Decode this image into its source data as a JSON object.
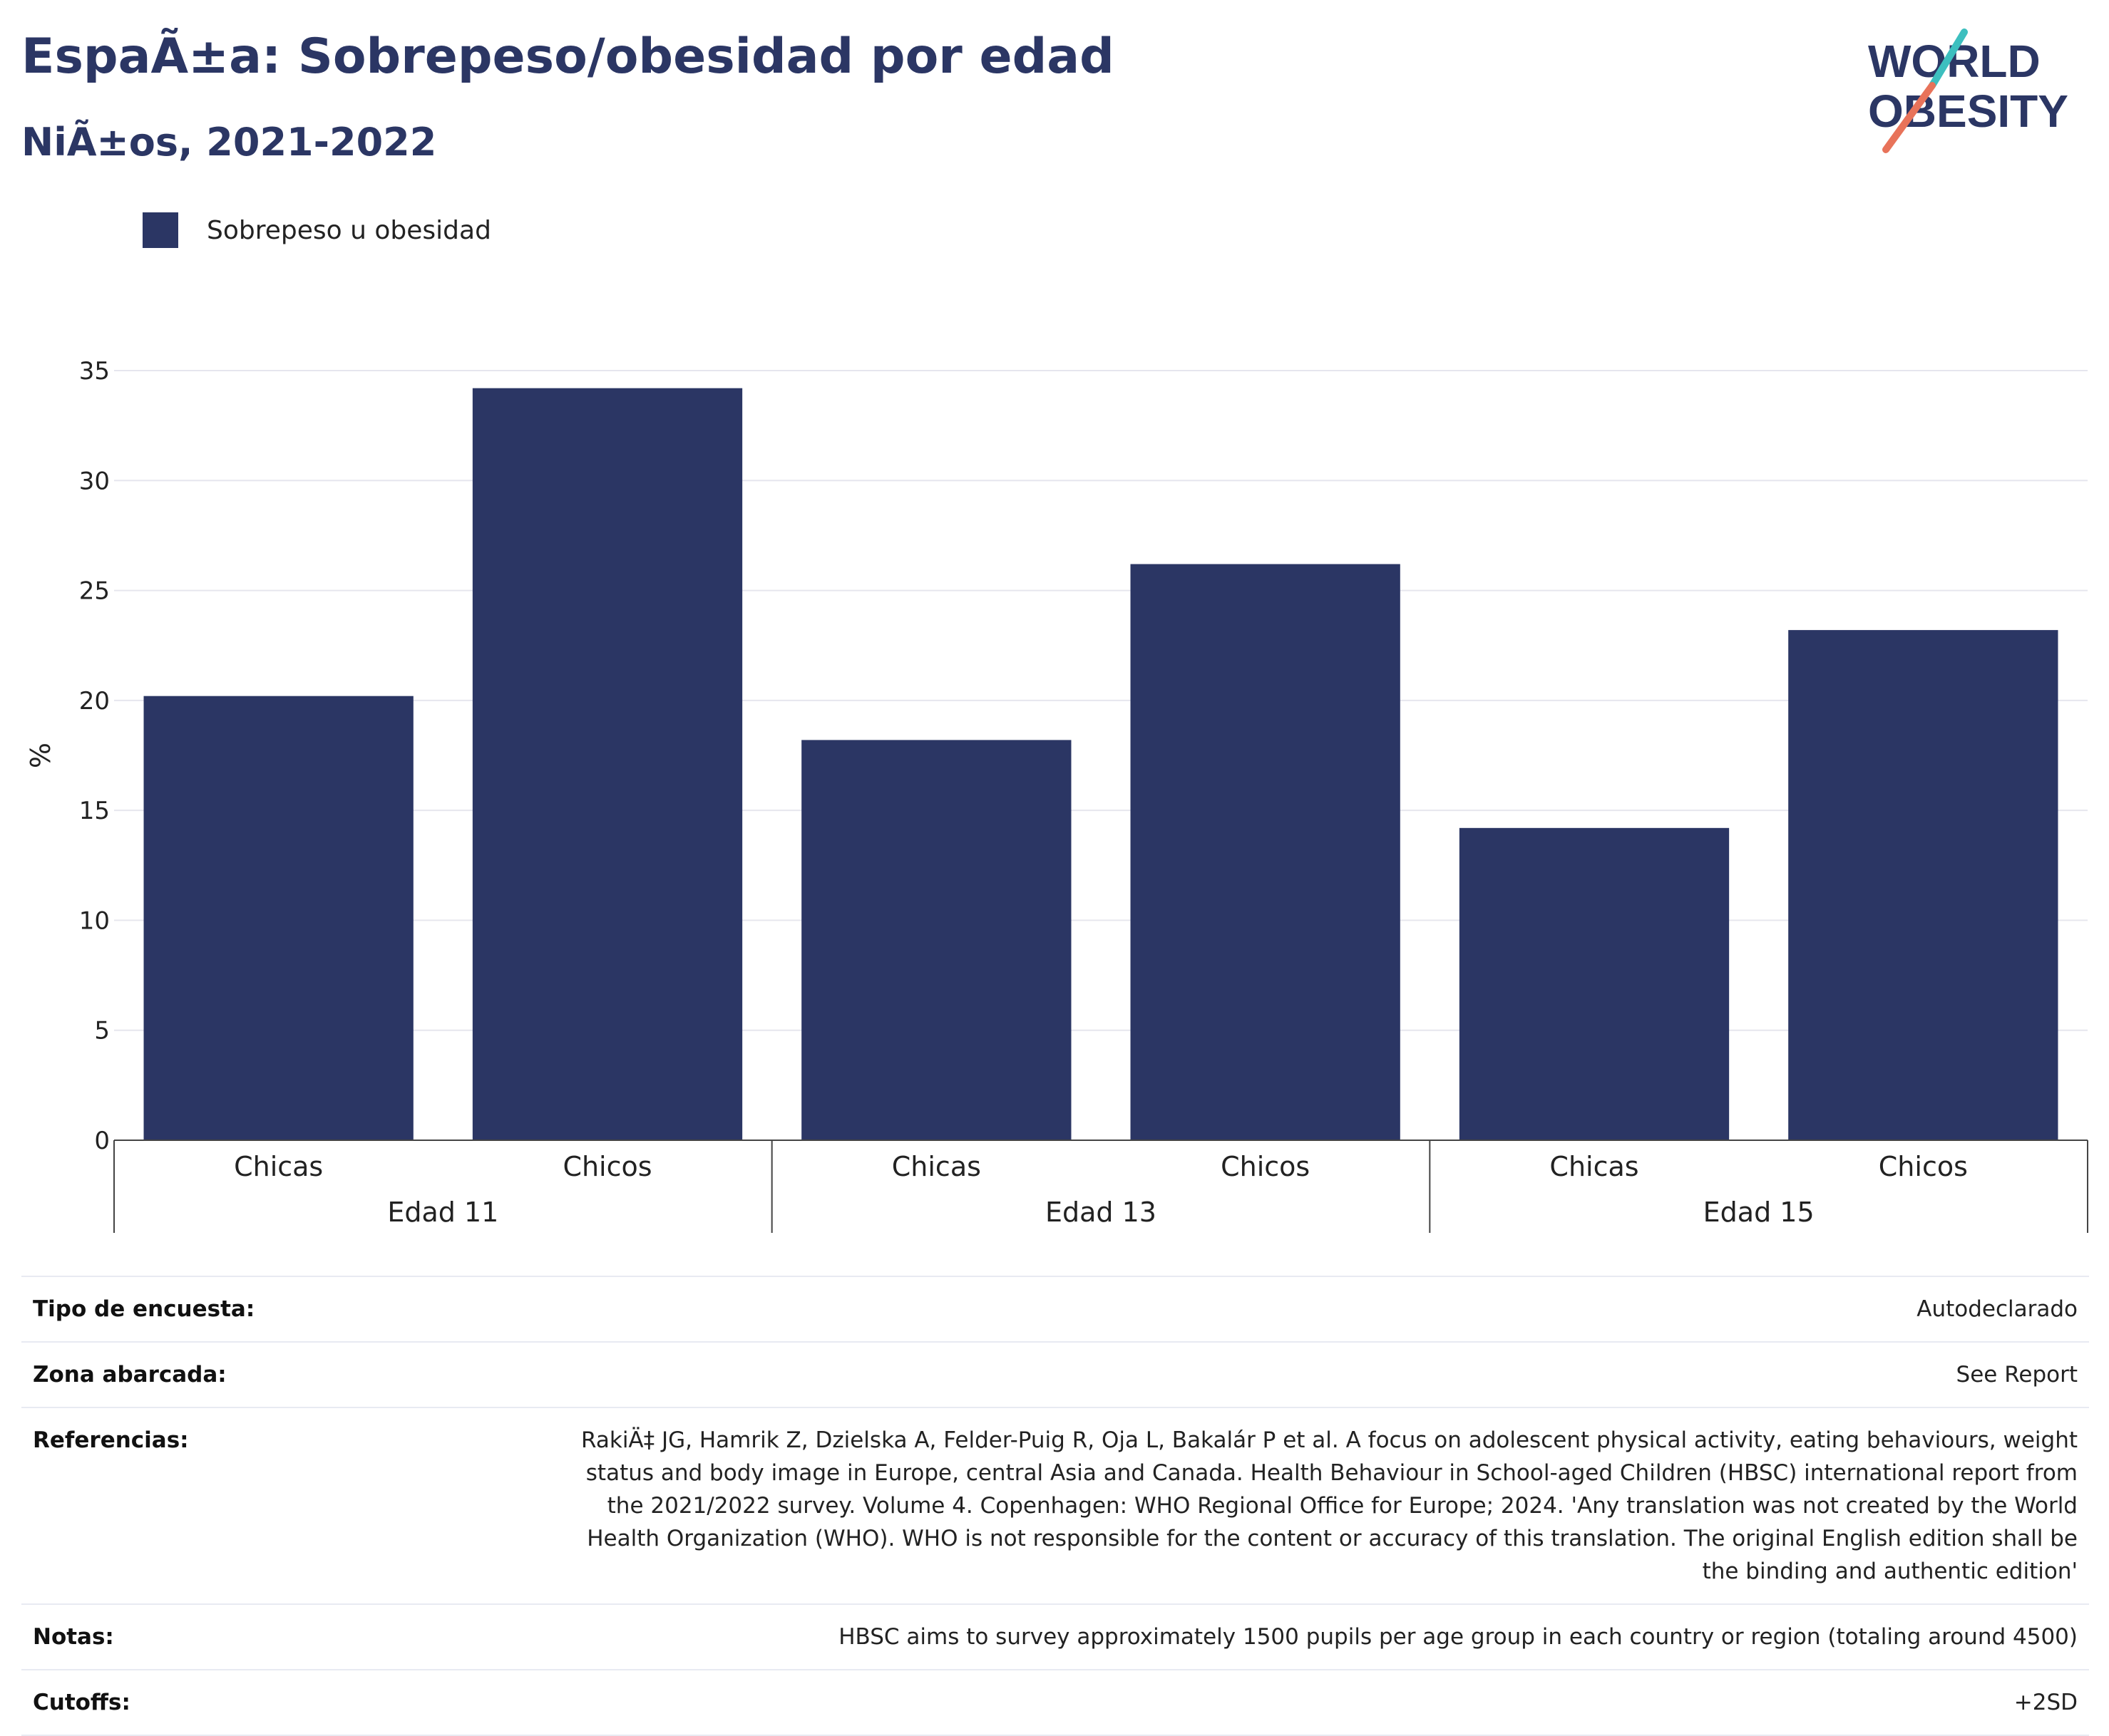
{
  "header": {
    "title": "EspaÃ±a: Sobrepeso/obesidad por edad",
    "subtitle": "NiÃ±os, 2021-2022"
  },
  "logo": {
    "line1": "WORLD",
    "line2": "OBESITY"
  },
  "colors": {
    "bar": "#2b3664",
    "title": "#2b3664",
    "logo_teal": "#3dbfbf",
    "logo_coral": "#e8735a"
  },
  "chart_data": {
    "type": "bar",
    "legend": [
      "Sobrepeso u obesidad"
    ],
    "legend_position": "top-left",
    "ylabel": "%",
    "ylim": [
      0,
      35
    ],
    "yticks": [
      0,
      5,
      10,
      15,
      20,
      25,
      30,
      35
    ],
    "grid": true,
    "groups": [
      "Edad 11",
      "Edad 13",
      "Edad 15"
    ],
    "categories": [
      "Chicas",
      "Chicos",
      "Chicas",
      "Chicos",
      "Chicas",
      "Chicos"
    ],
    "series": [
      {
        "name": "Sobrepeso u obesidad",
        "values": [
          20.2,
          34.2,
          18.2,
          26.2,
          14.2,
          23.2
        ]
      }
    ]
  },
  "metadata": {
    "rows": [
      {
        "label": "Tipo de encuesta:",
        "value": "Autodeclarado"
      },
      {
        "label": "Zona abarcada:",
        "value": "See Report"
      },
      {
        "label": "Referencias:",
        "value": "RakiÄ‡ JG, Hamrik Z, Dzielska A, Felder-Puig R, Oja L, Bakalár P et al. A focus on adolescent physical activity, eating behaviours, weight status and body image in Europe, central Asia and Canada. Health Behaviour in School-aged Children (HBSC) international report from the 2021/2022 survey. Volume 4. Copenhagen: WHO Regional Office for Europe; 2024. 'Any translation was not created by the World Health Organization (WHO). WHO is not responsible for the content or accuracy of this translation. The original English edition shall be the binding and authentic edition'"
      },
      {
        "label": "Notas:",
        "value": "HBSC aims to survey approximately 1500 pupils per age group in each country or region (totaling around 4500)"
      },
      {
        "label": "Cutoffs:",
        "value": "+2SD"
      }
    ]
  }
}
